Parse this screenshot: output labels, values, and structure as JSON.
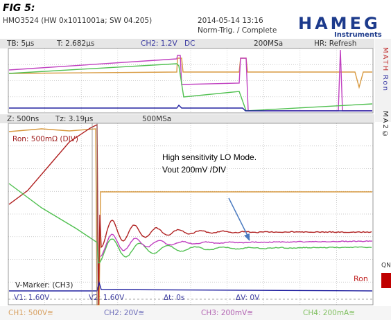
{
  "header": {
    "figure": "FIG 5:",
    "device": "HMO3524 (HW 0x1011001a; SW 04.205)",
    "datetime": "2014-05-14 13:16",
    "trigger": "Norm-Trig. / Complete",
    "logo": "HAMEG",
    "logo_sub": "Instruments"
  },
  "overview_bar": {
    "timebase": "TB: 5µs",
    "trigger_time": "T: 2.682µs",
    "trigger_channel": "CH2: 1.2V",
    "coupling": "DC",
    "sample_rate": "200MSa",
    "mode": "HR: Refresh"
  },
  "zoom_bar": {
    "zoom": "Z: 500ns",
    "zoom_time": "Tz: 3.19µs",
    "sample_rate": "500MSa"
  },
  "side_labels": {
    "math": "MATH",
    "ron": "Ron",
    "ma": "MA2©",
    "qn": "QN"
  },
  "annotations": {
    "scale": "Ron: 500mΩ (DIV)",
    "note_line1": "High sensitivity LO Mode.",
    "note_line2": "Vout 200mV /DIV",
    "trace_label": "Ron"
  },
  "marker": {
    "title": "V-Marker: (CH3)",
    "v1": "V1: 1.60V",
    "v2": "V2: 1.60V",
    "dt": "Δt: 0s",
    "dv": "ΔV: 0V"
  },
  "channels": [
    "CH1: 500V≅",
    "CH2: 20V≅",
    "CH3: 200mV≅",
    "CH4: 200mA≅"
  ]
}
